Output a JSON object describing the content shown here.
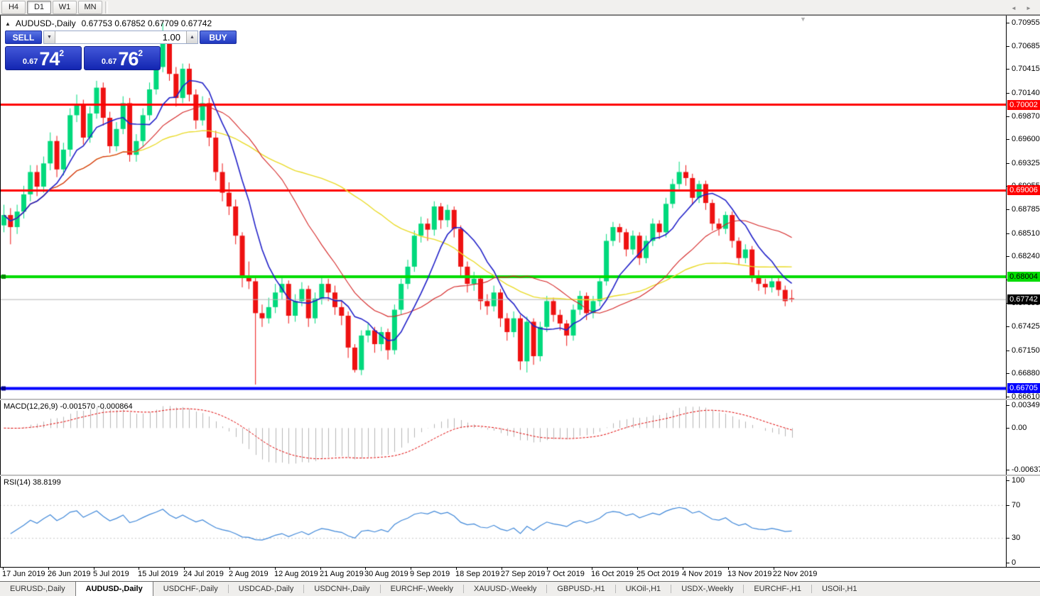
{
  "toolbar": {
    "timeframes": [
      {
        "label": "H4",
        "active": false
      },
      {
        "label": "D1",
        "active": true
      },
      {
        "label": "W1",
        "active": false
      },
      {
        "label": "MN",
        "active": false
      }
    ]
  },
  "icons": {
    "collapse": "▲",
    "shift_marker": "▼",
    "tab_scroll_left": "◄",
    "tab_scroll_right": "►",
    "vol_down": "▼",
    "vol_up": "▲"
  },
  "chart": {
    "header": {
      "symbol_label": "AUDUSD-,Daily",
      "ohlc_text": "0.67753 0.67852 0.67709 0.67742"
    },
    "trade_panel": {
      "sell_label": "SELL",
      "buy_label": "BUY",
      "volume": "1.00",
      "sell_price_small": "0.67",
      "sell_price_big": "74",
      "sell_price_sup": "2",
      "buy_price_small": "0.67",
      "buy_price_big": "76",
      "buy_price_sup": "2"
    }
  },
  "indicators": {
    "macd": {
      "label": "MACD(12,26,9)",
      "values": "-0.001570 -0.000864",
      "axis": [
        "0.00349",
        "0.00",
        "-0.00637"
      ]
    },
    "rsi": {
      "label": "RSI(14)",
      "value": "38.8199",
      "axis": [
        "100",
        "70",
        "30",
        "0"
      ]
    }
  },
  "tabs": [
    {
      "label": "EURUSD-,Daily",
      "active": false
    },
    {
      "label": "AUDUSD-,Daily",
      "active": true
    },
    {
      "label": "USDCHF-,Daily",
      "active": false
    },
    {
      "label": "USDCAD-,Daily",
      "active": false
    },
    {
      "label": "USDCNH-,Daily",
      "active": false
    },
    {
      "label": "EURCHF-,Weekly",
      "active": false
    },
    {
      "label": "XAUUSD-,Weekly",
      "active": false
    },
    {
      "label": "GBPUSD-,H1",
      "active": false
    },
    {
      "label": "UKOil-,H1",
      "active": false
    },
    {
      "label": "USDX-,Weekly",
      "active": false
    },
    {
      "label": "EURCHF-,H1",
      "active": false
    },
    {
      "label": "USOil-,H1",
      "active": false
    }
  ],
  "chart_data": {
    "type": "candlestick",
    "symbol": "AUDUSD-",
    "timeframe": "Daily",
    "price_axis_ticks": [
      "0.70955",
      "0.70685",
      "0.70415",
      "0.70140",
      "0.69870",
      "0.69600",
      "0.69325",
      "0.69055",
      "0.68785",
      "0.68510",
      "0.68240",
      "0.67970",
      "0.67695",
      "0.67425",
      "0.67150",
      "0.66880",
      "0.66610"
    ],
    "date_axis": [
      "17 Jun 2019",
      "26 Jun 2019",
      "5 Jul 2019",
      "15 Jul 2019",
      "24 Jul 2019",
      "2 Aug 2019",
      "12 Aug 2019",
      "21 Aug 2019",
      "30 Aug 2019",
      "9 Sep 2019",
      "18 Sep 2019",
      "27 Sep 2019",
      "7 Oct 2019",
      "16 Oct 2019",
      "25 Oct 2019",
      "4 Nov 2019",
      "13 Nov 2019",
      "22 Nov 2019"
    ],
    "levels": [
      {
        "price": 0.70002,
        "label": "0.70002",
        "color": "#ff0000",
        "text_color": "#ffffff",
        "width": 3,
        "handle": false
      },
      {
        "price": 0.69006,
        "label": "0.69006",
        "color": "#ff0000",
        "text_color": "#ffffff",
        "width": 3,
        "handle": false
      },
      {
        "price": 0.68004,
        "label": "0.68004",
        "color": "#00dc00",
        "text_color": "#000000",
        "width": 4,
        "handle": true,
        "handle_color": "#008800"
      },
      {
        "price": 0.66705,
        "label": "0.66705",
        "color": "#0000ff",
        "text_color": "#ffffff",
        "width": 4,
        "handle": true,
        "handle_color": "#000088"
      }
    ],
    "bid": {
      "price": 0.67742,
      "label": "0.67742",
      "badge_color": "#000000",
      "text_color": "#ffffff",
      "line_color": "#b4b4b4"
    },
    "colors": {
      "bull": "#00d97c",
      "bear": "#ee1111",
      "macd_hist": "#b4b4b4",
      "macd_signal": "#e00000",
      "rsi_line": "#3d86d8",
      "rsi_levels": "#c4c4c4"
    },
    "moving_averages": [
      {
        "period": 45,
        "color": "#e9da25",
        "width": 1.4
      },
      {
        "period": 21,
        "color": "#d42222",
        "width": 1.1
      },
      {
        "period": 8,
        "color": "#2020c8",
        "width": 1.6
      }
    ],
    "macd_params": {
      "fast": 12,
      "slow": 26,
      "signal": 9
    },
    "rsi_params": {
      "period": 14,
      "levels": [
        70,
        30
      ]
    },
    "ohlc": [
      [
        0.686,
        0.6884,
        0.6852,
        0.6872
      ],
      [
        0.6872,
        0.688,
        0.6838,
        0.6858
      ],
      [
        0.6858,
        0.6884,
        0.685,
        0.6876
      ],
      [
        0.6876,
        0.6906,
        0.6868,
        0.6896
      ],
      [
        0.6896,
        0.693,
        0.6888,
        0.6922
      ],
      [
        0.6922,
        0.693,
        0.6894,
        0.6905
      ],
      [
        0.6905,
        0.694,
        0.6898,
        0.6932
      ],
      [
        0.6932,
        0.6968,
        0.6924,
        0.6958
      ],
      [
        0.6958,
        0.6964,
        0.6916,
        0.6925
      ],
      [
        0.6925,
        0.6956,
        0.6918,
        0.6948
      ],
      [
        0.6948,
        0.6996,
        0.694,
        0.6988
      ],
      [
        0.6988,
        0.7012,
        0.698,
        0.7
      ],
      [
        0.7,
        0.7006,
        0.6954,
        0.6962
      ],
      [
        0.6962,
        0.6998,
        0.6956,
        0.699
      ],
      [
        0.699,
        0.7028,
        0.6984,
        0.702
      ],
      [
        0.702,
        0.7026,
        0.6976,
        0.6985
      ],
      [
        0.6985,
        0.6992,
        0.6944,
        0.6952
      ],
      [
        0.6952,
        0.698,
        0.6946,
        0.6972
      ],
      [
        0.6972,
        0.701,
        0.6966,
        0.7002
      ],
      [
        0.7002,
        0.7008,
        0.6934,
        0.6942
      ],
      [
        0.6942,
        0.6966,
        0.6934,
        0.6958
      ],
      [
        0.6958,
        0.6996,
        0.6952,
        0.6988
      ],
      [
        0.6988,
        0.7026,
        0.6982,
        0.7018
      ],
      [
        0.7018,
        0.7052,
        0.7012,
        0.7044
      ],
      [
        0.7044,
        0.7095,
        0.7038,
        0.7078
      ],
      [
        0.7078,
        0.7082,
        0.7028,
        0.7036
      ],
      [
        0.7036,
        0.7044,
        0.6998,
        0.7008
      ],
      [
        0.7008,
        0.7048,
        0.7002,
        0.7042
      ],
      [
        0.7042,
        0.7048,
        0.7004,
        0.7012
      ],
      [
        0.7012,
        0.7018,
        0.6972,
        0.6982
      ],
      [
        0.6982,
        0.701,
        0.6976,
        0.7002
      ],
      [
        0.7002,
        0.7008,
        0.6952,
        0.6962
      ],
      [
        0.6962,
        0.697,
        0.6912,
        0.6922
      ],
      [
        0.6922,
        0.6932,
        0.6888,
        0.6898
      ],
      [
        0.6898,
        0.691,
        0.6872,
        0.6882
      ],
      [
        0.6882,
        0.689,
        0.6838,
        0.6848
      ],
      [
        0.6848,
        0.6852,
        0.6788,
        0.68
      ],
      [
        0.68,
        0.6818,
        0.6786,
        0.6795
      ],
      [
        0.6795,
        0.68,
        0.6675,
        0.6758
      ],
      [
        0.6758,
        0.6768,
        0.6742,
        0.6752
      ],
      [
        0.6752,
        0.6776,
        0.6746,
        0.6765
      ],
      [
        0.6765,
        0.6792,
        0.6758,
        0.6782
      ],
      [
        0.6782,
        0.68,
        0.6774,
        0.6792
      ],
      [
        0.6792,
        0.6796,
        0.6746,
        0.6755
      ],
      [
        0.6755,
        0.678,
        0.6748,
        0.6772
      ],
      [
        0.6772,
        0.6794,
        0.6766,
        0.6786
      ],
      [
        0.6786,
        0.679,
        0.6742,
        0.6752
      ],
      [
        0.6752,
        0.6782,
        0.6746,
        0.6775
      ],
      [
        0.6775,
        0.68,
        0.6768,
        0.6792
      ],
      [
        0.6792,
        0.6798,
        0.6772,
        0.6782
      ],
      [
        0.6782,
        0.679,
        0.6756,
        0.6765
      ],
      [
        0.6765,
        0.6772,
        0.6744,
        0.6755
      ],
      [
        0.6755,
        0.676,
        0.6706,
        0.6718
      ],
      [
        0.6718,
        0.6722,
        0.6689,
        0.6692
      ],
      [
        0.6692,
        0.6738,
        0.6686,
        0.6732
      ],
      [
        0.6732,
        0.6746,
        0.6724,
        0.6738
      ],
      [
        0.6738,
        0.6742,
        0.6712,
        0.6722
      ],
      [
        0.6722,
        0.6742,
        0.6714,
        0.6736
      ],
      [
        0.6736,
        0.674,
        0.6704,
        0.6715
      ],
      [
        0.6715,
        0.6768,
        0.671,
        0.6762
      ],
      [
        0.6762,
        0.6798,
        0.6756,
        0.6792
      ],
      [
        0.6792,
        0.682,
        0.6786,
        0.6812
      ],
      [
        0.6812,
        0.6854,
        0.6806,
        0.6848
      ],
      [
        0.6848,
        0.687,
        0.684,
        0.6862
      ],
      [
        0.6862,
        0.6868,
        0.6842,
        0.6855
      ],
      [
        0.6855,
        0.6888,
        0.6848,
        0.6882
      ],
      [
        0.6882,
        0.6886,
        0.6856,
        0.6866
      ],
      [
        0.6866,
        0.6884,
        0.6858,
        0.6878
      ],
      [
        0.6878,
        0.6882,
        0.6846,
        0.6856
      ],
      [
        0.6856,
        0.686,
        0.6802,
        0.6812
      ],
      [
        0.6812,
        0.6818,
        0.6782,
        0.6792
      ],
      [
        0.6792,
        0.6806,
        0.6784,
        0.6798
      ],
      [
        0.6798,
        0.6802,
        0.6762,
        0.6772
      ],
      [
        0.6772,
        0.678,
        0.6756,
        0.6766
      ],
      [
        0.6766,
        0.679,
        0.676,
        0.6782
      ],
      [
        0.6782,
        0.6786,
        0.6742,
        0.6752
      ],
      [
        0.6752,
        0.6758,
        0.6726,
        0.6736
      ],
      [
        0.6736,
        0.676,
        0.673,
        0.6752
      ],
      [
        0.6752,
        0.6756,
        0.6692,
        0.6702
      ],
      [
        0.6702,
        0.6754,
        0.6689,
        0.6748
      ],
      [
        0.6748,
        0.6752,
        0.6698,
        0.6708
      ],
      [
        0.6708,
        0.6748,
        0.6702,
        0.6742
      ],
      [
        0.6742,
        0.6778,
        0.6736,
        0.6772
      ],
      [
        0.6772,
        0.6776,
        0.6748,
        0.6756
      ],
      [
        0.6756,
        0.6762,
        0.6738,
        0.6746
      ],
      [
        0.6746,
        0.675,
        0.672,
        0.6732
      ],
      [
        0.6732,
        0.6768,
        0.6726,
        0.6762
      ],
      [
        0.6762,
        0.6784,
        0.6756,
        0.6778
      ],
      [
        0.6778,
        0.6782,
        0.675,
        0.6758
      ],
      [
        0.6758,
        0.6778,
        0.6752,
        0.6772
      ],
      [
        0.6772,
        0.68,
        0.6766,
        0.6795
      ],
      [
        0.6795,
        0.685,
        0.679,
        0.6842
      ],
      [
        0.6842,
        0.6864,
        0.6836,
        0.6858
      ],
      [
        0.6858,
        0.6862,
        0.684,
        0.6852
      ],
      [
        0.6852,
        0.6856,
        0.6824,
        0.6832
      ],
      [
        0.6832,
        0.6854,
        0.6826,
        0.6848
      ],
      [
        0.6848,
        0.6852,
        0.6814,
        0.6822
      ],
      [
        0.6822,
        0.6848,
        0.6816,
        0.6842
      ],
      [
        0.6842,
        0.6868,
        0.6836,
        0.6862
      ],
      [
        0.6862,
        0.6866,
        0.6844,
        0.6852
      ],
      [
        0.6852,
        0.6892,
        0.6846,
        0.6885
      ],
      [
        0.6885,
        0.6914,
        0.688,
        0.6908
      ],
      [
        0.6908,
        0.6934,
        0.6902,
        0.6922
      ],
      [
        0.6922,
        0.693,
        0.6906,
        0.6915
      ],
      [
        0.6915,
        0.692,
        0.6884,
        0.6892
      ],
      [
        0.6892,
        0.6912,
        0.6886,
        0.6908
      ],
      [
        0.6908,
        0.6912,
        0.6878,
        0.6886
      ],
      [
        0.6886,
        0.689,
        0.6854,
        0.6862
      ],
      [
        0.6862,
        0.6868,
        0.6848,
        0.6856
      ],
      [
        0.6856,
        0.6876,
        0.685,
        0.6872
      ],
      [
        0.6872,
        0.6876,
        0.6834,
        0.6842
      ],
      [
        0.6842,
        0.6846,
        0.6814,
        0.6822
      ],
      [
        0.6822,
        0.6838,
        0.6816,
        0.6832
      ],
      [
        0.6832,
        0.6836,
        0.6794,
        0.6802
      ],
      [
        0.6802,
        0.6808,
        0.6784,
        0.6792
      ],
      [
        0.6792,
        0.6798,
        0.678,
        0.6788
      ],
      [
        0.6788,
        0.68,
        0.6782,
        0.6795
      ],
      [
        0.6795,
        0.6799,
        0.6778,
        0.6785
      ],
      [
        0.6785,
        0.679,
        0.6766,
        0.6772
      ],
      [
        0.67753,
        0.67852,
        0.67709,
        0.67742
      ]
    ]
  }
}
